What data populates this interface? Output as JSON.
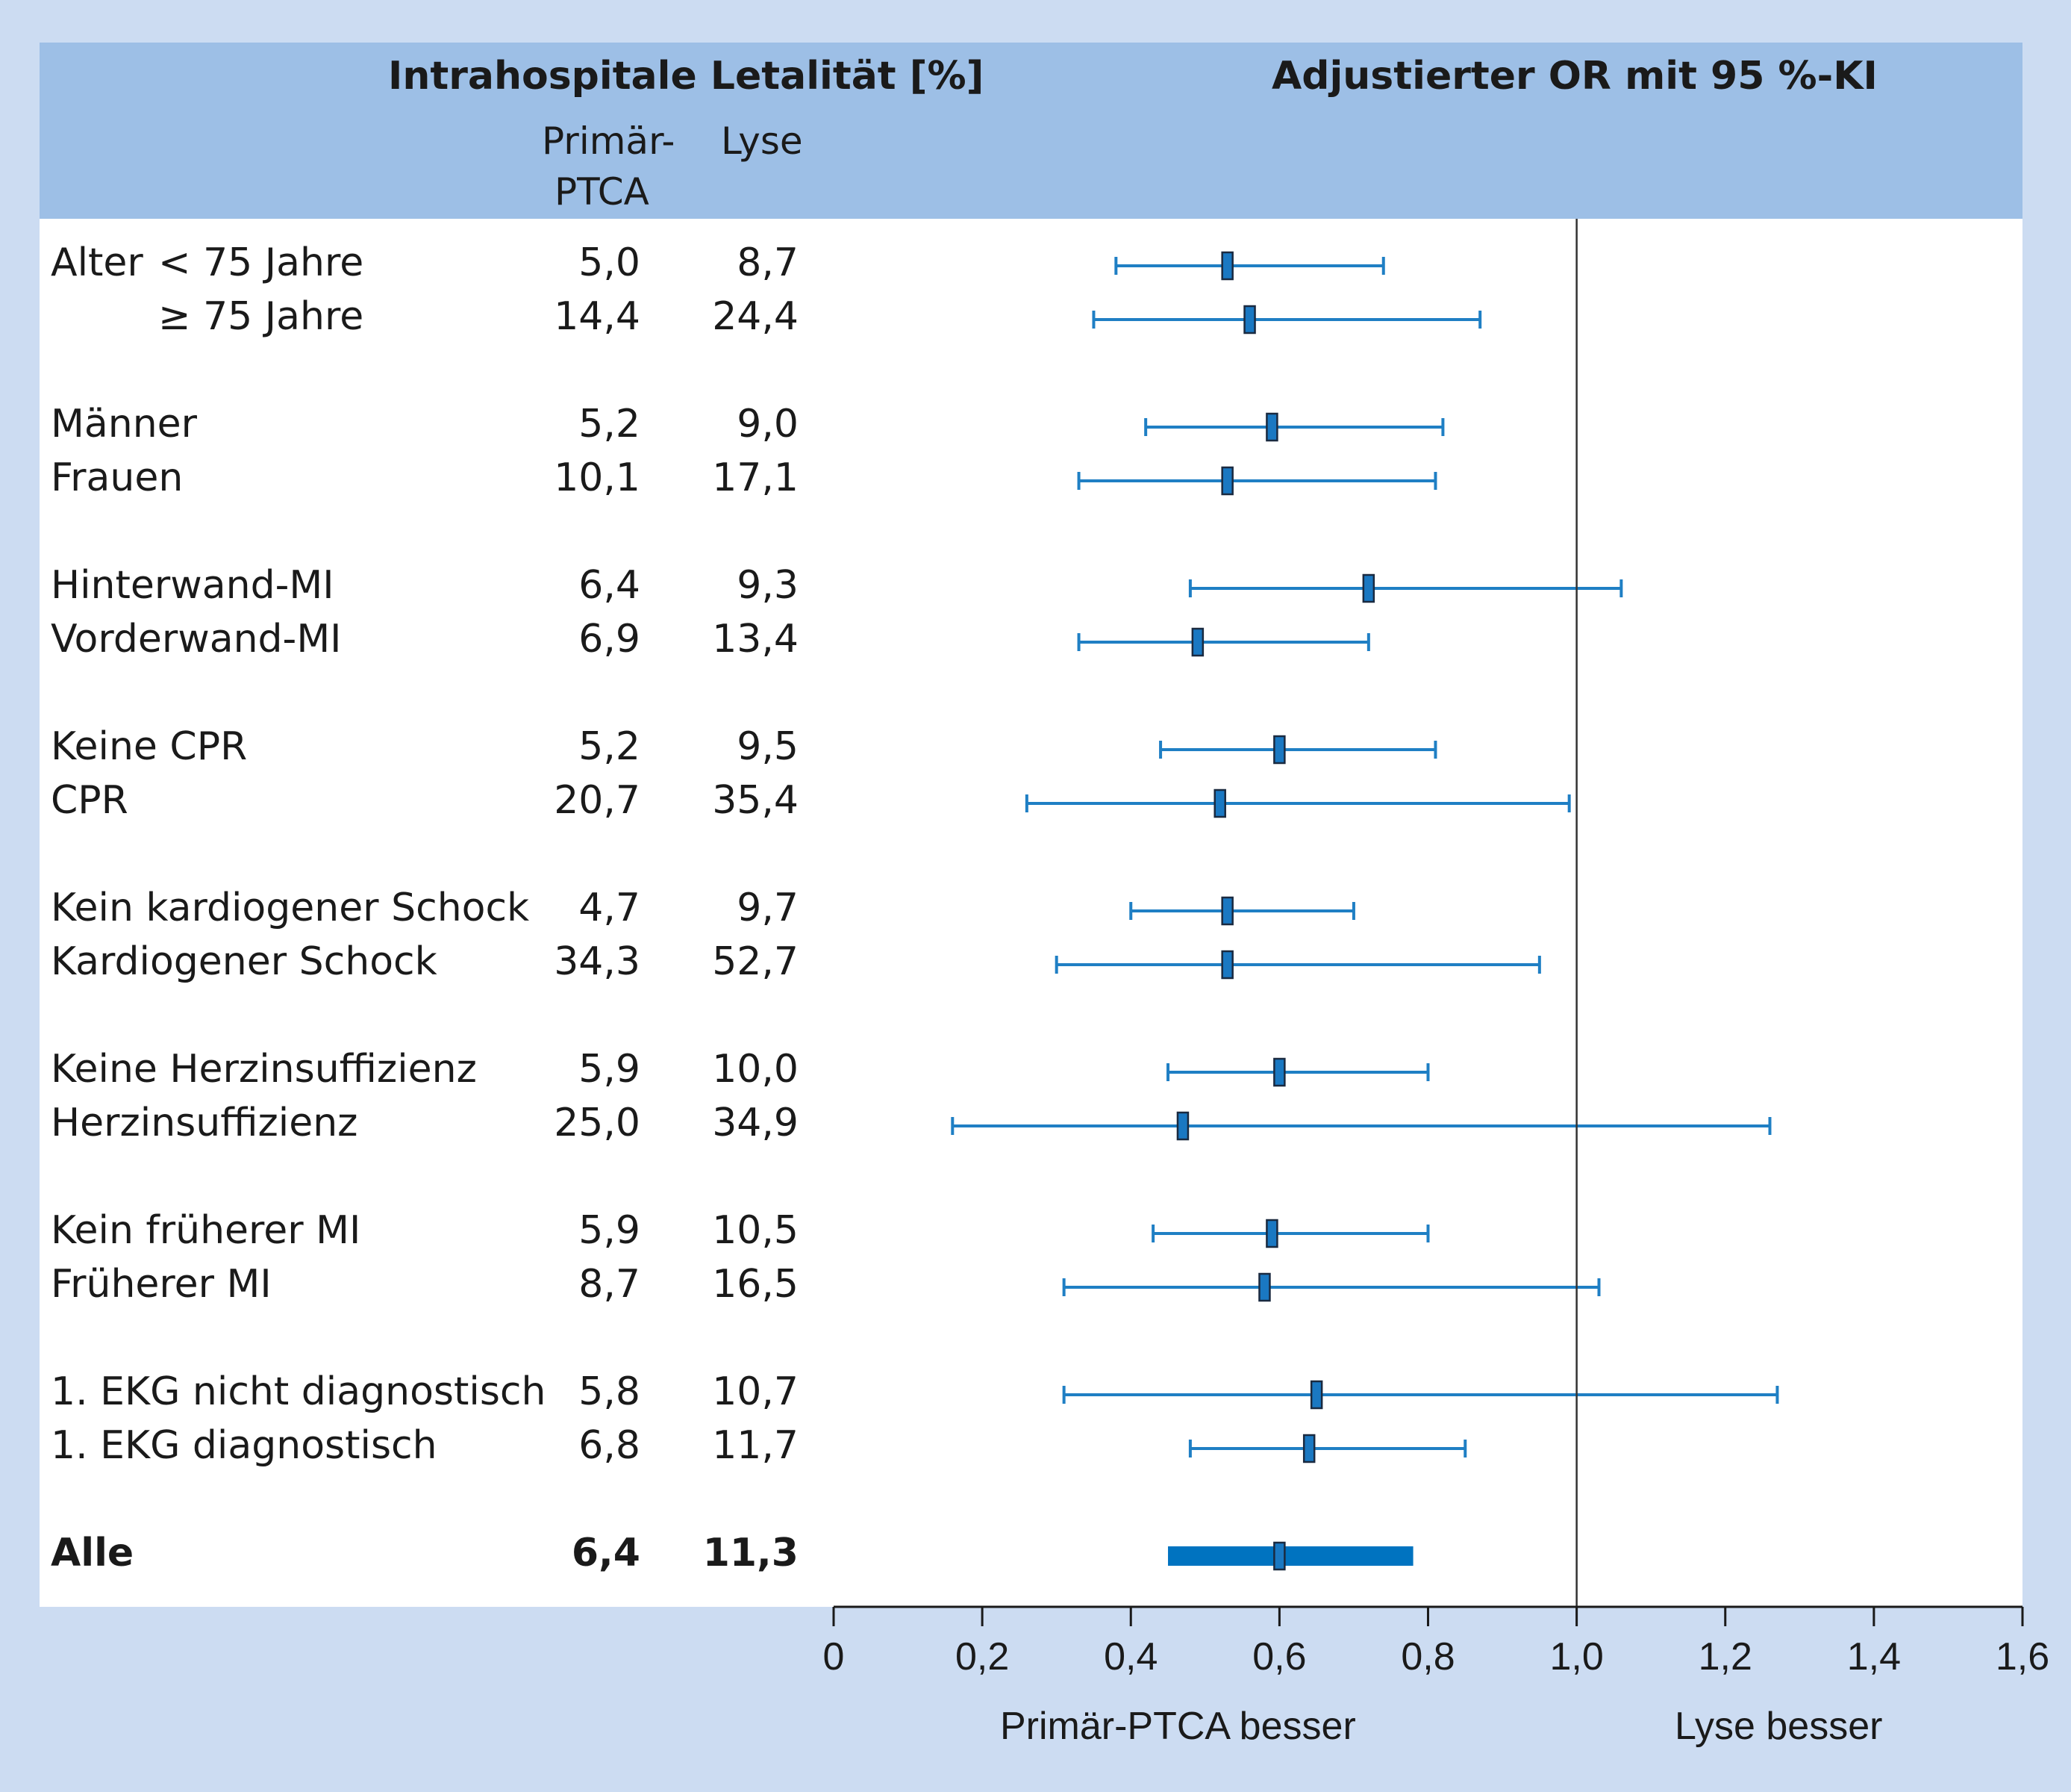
{
  "header": {
    "left_title": "Intrahospitale Letalität [%]",
    "right_title": "Adjustierter OR mit 95 %-KI",
    "col1_line1": "Primär-",
    "col1_line2": "PTCA",
    "col2": "Lyse"
  },
  "footer": {
    "left_note": "Primär-PTCA besser",
    "right_note": "Lyse besser"
  },
  "chart_data": {
    "type": "forest",
    "xlim": [
      0,
      1.6
    ],
    "x_ticks": [
      0,
      0.2,
      0.4,
      0.6,
      0.8,
      1.0,
      1.2,
      1.4,
      1.6
    ],
    "x_tick_labels": [
      "0",
      "0,2",
      "0,4",
      "0,6",
      "0,8",
      "1,0",
      "1,2",
      "1,4",
      "1,6"
    ],
    "reference_line": 1.0,
    "colors": {
      "whisker": "#1f7fc4",
      "marker": "#1a78c2",
      "marker_edge": "#1a2a40",
      "summary": "#0073c0",
      "reference": "#333333"
    },
    "groups": [
      {
        "label": "Alter",
        "rows": [
          {
            "label": "< 75 Jahre",
            "ptca": "5,0",
            "lyse": "8,7",
            "or": 0.53,
            "ci": [
              0.38,
              0.74
            ]
          },
          {
            "label": "≥ 75 Jahre",
            "ptca": "14,4",
            "lyse": "24,4",
            "or": 0.56,
            "ci": [
              0.35,
              0.87
            ]
          }
        ]
      },
      {
        "label": "",
        "rows": [
          {
            "label": "Männer",
            "ptca": "5,2",
            "lyse": "9,0",
            "or": 0.59,
            "ci": [
              0.42,
              0.82
            ]
          },
          {
            "label": "Frauen",
            "ptca": "10,1",
            "lyse": "17,1",
            "or": 0.53,
            "ci": [
              0.33,
              0.81
            ]
          }
        ]
      },
      {
        "label": "",
        "rows": [
          {
            "label": "Hinterwand-MI",
            "ptca": "6,4",
            "lyse": "9,3",
            "or": 0.72,
            "ci": [
              0.48,
              1.06
            ]
          },
          {
            "label": "Vorderwand-MI",
            "ptca": "6,9",
            "lyse": "13,4",
            "or": 0.49,
            "ci": [
              0.33,
              0.72
            ]
          }
        ]
      },
      {
        "label": "",
        "rows": [
          {
            "label": "Keine CPR",
            "ptca": "5,2",
            "lyse": "9,5",
            "or": 0.6,
            "ci": [
              0.44,
              0.81
            ]
          },
          {
            "label": "CPR",
            "ptca": "20,7",
            "lyse": "35,4",
            "or": 0.52,
            "ci": [
              0.26,
              0.99
            ]
          }
        ]
      },
      {
        "label": "",
        "rows": [
          {
            "label": "Kein kardiogener Schock",
            "ptca": "4,7",
            "lyse": "9,7",
            "or": 0.53,
            "ci": [
              0.4,
              0.7
            ]
          },
          {
            "label": "Kardiogener Schock",
            "ptca": "34,3",
            "lyse": "52,7",
            "or": 0.53,
            "ci": [
              0.3,
              0.95
            ]
          }
        ]
      },
      {
        "label": "",
        "rows": [
          {
            "label": "Keine Herzinsuffizienz",
            "ptca": "5,9",
            "lyse": "10,0",
            "or": 0.6,
            "ci": [
              0.45,
              0.8
            ]
          },
          {
            "label": "Herzinsuffizienz",
            "ptca": "25,0",
            "lyse": "34,9",
            "or": 0.47,
            "ci": [
              0.16,
              1.26
            ]
          }
        ]
      },
      {
        "label": "",
        "rows": [
          {
            "label": "Kein früherer MI",
            "ptca": "5,9",
            "lyse": "10,5",
            "or": 0.59,
            "ci": [
              0.43,
              0.8
            ]
          },
          {
            "label": "Früherer MI",
            "ptca": "8,7",
            "lyse": "16,5",
            "or": 0.58,
            "ci": [
              0.31,
              1.03
            ]
          }
        ]
      },
      {
        "label": "",
        "rows": [
          {
            "label": "1. EKG nicht diagnostisch",
            "ptca": "5,8",
            "lyse": "10,7",
            "or": 0.65,
            "ci": [
              0.31,
              1.27
            ]
          },
          {
            "label": "1. EKG diagnostisch",
            "ptca": "6,8",
            "lyse": "11,7",
            "or": 0.64,
            "ci": [
              0.48,
              0.85
            ]
          }
        ]
      }
    ],
    "summary": {
      "label": "Alle",
      "ptca": "6,4",
      "lyse": "11,3",
      "or": 0.6,
      "ci": [
        0.45,
        0.78
      ]
    }
  }
}
